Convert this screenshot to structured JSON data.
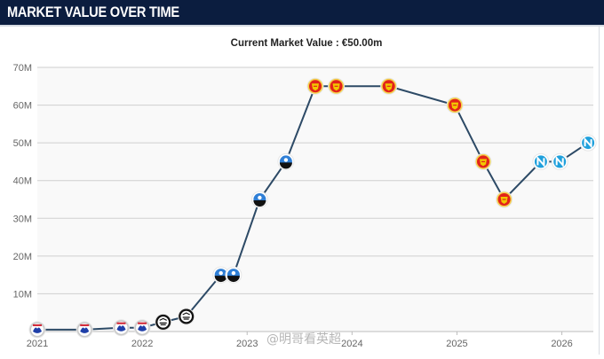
{
  "header": {
    "title": "MARKET VALUE OVER TIME"
  },
  "chart_data": {
    "type": "line",
    "title": "Current Market Value : €50.00m",
    "xlabel": "",
    "ylabel": "",
    "xlim": [
      2021.0,
      2026.3
    ],
    "ylim": [
      0,
      70
    ],
    "x_ticks": [
      {
        "value": 2021,
        "label": "2021"
      },
      {
        "value": 2022,
        "label": "2022"
      },
      {
        "value": 2023,
        "label": "2023"
      },
      {
        "value": 2024,
        "label": "2024"
      },
      {
        "value": 2025,
        "label": "2025"
      },
      {
        "value": 2026,
        "label": "2026"
      }
    ],
    "y_ticks": [
      {
        "value": 10,
        "label": "10M"
      },
      {
        "value": 20,
        "label": "20M"
      },
      {
        "value": 30,
        "label": "30M"
      },
      {
        "value": 40,
        "label": "40M"
      },
      {
        "value": 50,
        "label": "50M"
      },
      {
        "value": 60,
        "label": "60M"
      },
      {
        "value": 70,
        "label": "70M"
      }
    ],
    "grid": true,
    "line_color": "#2d4a66",
    "points": [
      {
        "x": 2021.0,
        "y": 0.5,
        "club": "copenhagen"
      },
      {
        "x": 2021.45,
        "y": 0.5,
        "club": "copenhagen"
      },
      {
        "x": 2021.8,
        "y": 1,
        "club": "copenhagen"
      },
      {
        "x": 2022.0,
        "y": 1,
        "club": "copenhagen"
      },
      {
        "x": 2022.2,
        "y": 2.5,
        "club": "paok"
      },
      {
        "x": 2022.42,
        "y": 4,
        "club": "paok"
      },
      {
        "x": 2022.75,
        "y": 15,
        "club": "atalanta"
      },
      {
        "x": 2022.87,
        "y": 15,
        "club": "atalanta"
      },
      {
        "x": 2023.12,
        "y": 35,
        "club": "atalanta"
      },
      {
        "x": 2023.37,
        "y": 45,
        "club": "atalanta"
      },
      {
        "x": 2023.65,
        "y": 65,
        "club": "man-united"
      },
      {
        "x": 2023.85,
        "y": 65,
        "club": "man-united"
      },
      {
        "x": 2024.35,
        "y": 65,
        "club": "man-united"
      },
      {
        "x": 2024.98,
        "y": 60,
        "club": "man-united"
      },
      {
        "x": 2025.25,
        "y": 45,
        "club": "man-united"
      },
      {
        "x": 2025.45,
        "y": 35,
        "club": "man-united"
      },
      {
        "x": 2025.8,
        "y": 45,
        "club": "napoli"
      },
      {
        "x": 2025.98,
        "y": 45,
        "club": "napoli"
      },
      {
        "x": 2026.25,
        "y": 50,
        "club": "napoli"
      }
    ],
    "club_icons": {
      "copenhagen": {
        "icon": "copenhagen-crest-icon",
        "fill": "#ffffff",
        "accent": "#1f3fa8",
        "ring": "#c9c9c9"
      },
      "paok": {
        "icon": "paok-crest-icon",
        "fill": "#ffffff",
        "accent": "#111111",
        "ring": "#111111"
      },
      "atalanta": {
        "icon": "atalanta-crest-icon",
        "fill": "#2f7fd6",
        "accent": "#111111",
        "ring": "#ffffff"
      },
      "man-united": {
        "icon": "man-united-crest-icon",
        "fill": "#e2231a",
        "accent": "#f2c700",
        "ring": "#f6d24a"
      },
      "napoli": {
        "icon": "napoli-crest-icon",
        "fill": "#1fa0dc",
        "accent": "#ffffff",
        "ring": "#ffffff"
      }
    }
  }
}
